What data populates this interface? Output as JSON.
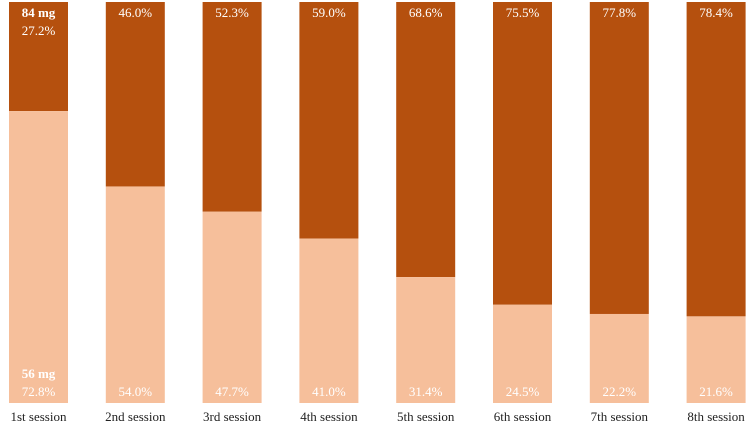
{
  "chart_data": {
    "type": "bar",
    "stacked": true,
    "percent_stacked": true,
    "title": "",
    "xlabel": "",
    "ylabel": "",
    "ylim": [
      0,
      100
    ],
    "grid": false,
    "legend": "none",
    "categories": [
      "1st session",
      "2nd session",
      "3rd session",
      "4th session",
      "5th session",
      "6th session",
      "7th session",
      "8th session"
    ],
    "series": [
      {
        "name": "56 mg",
        "color": "#f6bf9b",
        "values": [
          72.8,
          54.0,
          47.7,
          41.0,
          31.4,
          24.5,
          22.2,
          21.6
        ],
        "labels": [
          "72.8%",
          "54.0%",
          "47.7%",
          "41.0%",
          "31.4%",
          "24.5%",
          "22.2%",
          "21.6%"
        ]
      },
      {
        "name": "84 mg",
        "color": "#b5500e",
        "values": [
          27.2,
          46.0,
          52.3,
          59.0,
          68.6,
          75.5,
          77.8,
          78.4
        ],
        "labels": [
          "27.2%",
          "46.0%",
          "52.3%",
          "59.0%",
          "68.6%",
          "75.5%",
          "77.8%",
          "78.4%"
        ]
      }
    ]
  }
}
